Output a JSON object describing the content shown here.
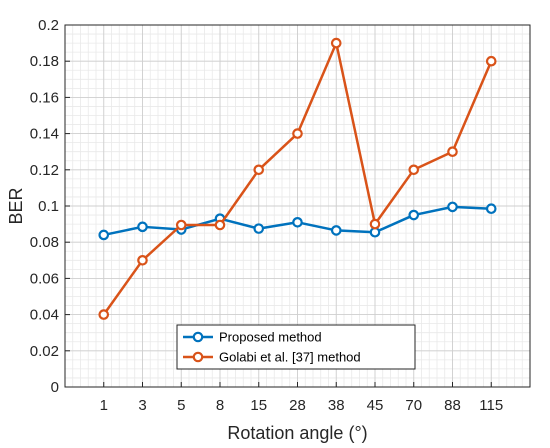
{
  "chart_data": {
    "type": "line",
    "title": "",
    "xlabel": "Rotation angle (°)",
    "ylabel": "BER",
    "categories": [
      "1",
      "3",
      "5",
      "8",
      "15",
      "28",
      "38",
      "45",
      "70",
      "88",
      "115"
    ],
    "ylim": [
      0,
      0.2
    ],
    "yticks": [
      "0",
      "0.02",
      "0.04",
      "0.06",
      "0.08",
      "0.1",
      "0.12",
      "0.14",
      "0.16",
      "0.18",
      "0.2"
    ],
    "grid": true,
    "minor_grid": true,
    "legend_position": "bottom-center",
    "series": [
      {
        "name": "Proposed method",
        "color": "#0072BD",
        "values": [
          0.084,
          0.0885,
          0.087,
          0.093,
          0.0875,
          0.091,
          0.0865,
          0.0855,
          0.095,
          0.0995,
          0.0985
        ]
      },
      {
        "name": "Golabi et al. [37] method",
        "color": "#D95319",
        "values": [
          0.04,
          0.07,
          0.0895,
          0.0895,
          0.12,
          0.14,
          0.19,
          0.09,
          0.12,
          0.13,
          0.18
        ]
      }
    ]
  }
}
